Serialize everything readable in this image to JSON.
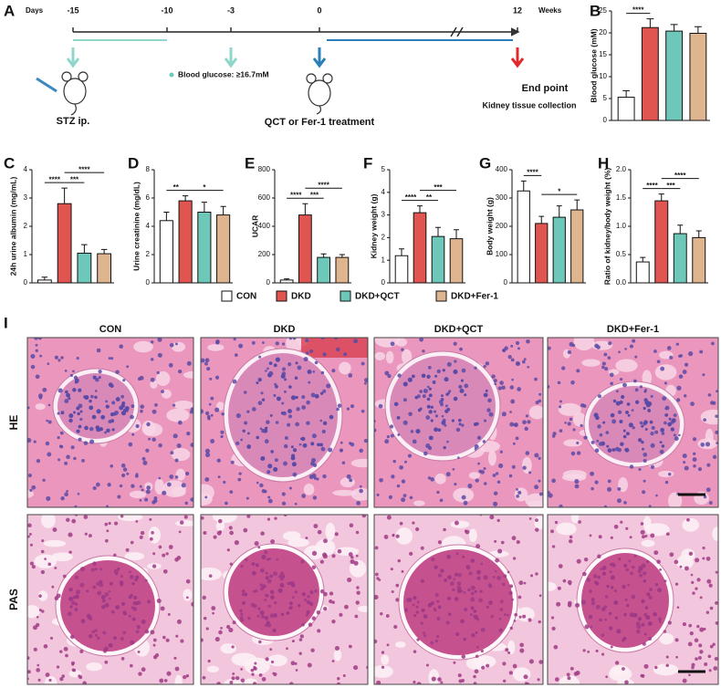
{
  "timeline": {
    "panel": "A",
    "left_unit": "Days",
    "right_unit": "Weeks",
    "ticks": [
      "-15",
      "-10",
      "-3",
      "0",
      "12"
    ],
    "events": {
      "stz": "STZ ip.",
      "glucose": "Blood glucose: ≥16.7mM",
      "treatment": "QCT or Fer-1 treatment",
      "end_point": "End point",
      "collection": "Kidney tissue collection"
    }
  },
  "legend": [
    {
      "name": "CON",
      "color": "#ffffff"
    },
    {
      "name": "DKD",
      "color": "#e0554f"
    },
    {
      "name": "DKD+QCT",
      "color": "#6ec8b9"
    },
    {
      "name": "DKD+Fer-1",
      "color": "#dfb590"
    }
  ],
  "chart_data": [
    {
      "type": "bar",
      "panel": "B",
      "y_label": "Blood glucose (mM)",
      "values": [
        5.3,
        21.2,
        20.4,
        19.9
      ],
      "errors": [
        1.5,
        2.0,
        1.5,
        1.5
      ],
      "ylim": [
        0,
        25
      ],
      "yticks": [
        0,
        5,
        10,
        15,
        20,
        25
      ],
      "significance": [
        {
          "label": "****",
          "from": 0,
          "to": 1
        }
      ]
    },
    {
      "type": "bar",
      "panel": "C",
      "y_label": "24h urine albumin (mg/mL)",
      "values": [
        0.1,
        2.8,
        1.05,
        1.03
      ],
      "errors": [
        0.1,
        0.55,
        0.3,
        0.15
      ],
      "ylim": [
        0,
        4
      ],
      "yticks": [
        0,
        1,
        2,
        3,
        4
      ],
      "significance": [
        {
          "label": "****",
          "from": 0,
          "to": 1
        },
        {
          "label": "***",
          "from": 1,
          "to": 2
        },
        {
          "label": "****",
          "from": 1,
          "to": 3
        }
      ]
    },
    {
      "type": "bar",
      "panel": "D",
      "y_label": "Urine creatinine (mg/dL)",
      "values": [
        4.4,
        5.8,
        5.0,
        4.8
      ],
      "errors": [
        0.6,
        0.35,
        0.7,
        0.6
      ],
      "ylim": [
        0,
        8
      ],
      "yticks": [
        0,
        2,
        4,
        6,
        8
      ],
      "significance": [
        {
          "label": "**",
          "from": 0,
          "to": 1
        },
        {
          "label": "*",
          "from": 1,
          "to": 3
        }
      ]
    },
    {
      "type": "bar",
      "panel": "E",
      "y_label": "UCAR",
      "values": [
        20,
        480,
        180,
        180
      ],
      "errors": [
        8,
        80,
        25,
        20
      ],
      "ylim": [
        0,
        800
      ],
      "yticks": [
        0,
        200,
        400,
        600,
        800
      ],
      "significance": [
        {
          "label": "****",
          "from": 0,
          "to": 1
        },
        {
          "label": "***",
          "from": 1,
          "to": 2
        },
        {
          "label": "****",
          "from": 1,
          "to": 3
        }
      ]
    },
    {
      "type": "bar",
      "panel": "F",
      "y_label": "Kidney weight (g)",
      "values": [
        1.2,
        3.1,
        2.05,
        1.95
      ],
      "errors": [
        0.3,
        0.3,
        0.4,
        0.4
      ],
      "ylim": [
        0,
        5
      ],
      "yticks": [
        0,
        1,
        2,
        3,
        4,
        5
      ],
      "significance": [
        {
          "label": "****",
          "from": 0,
          "to": 1
        },
        {
          "label": "**",
          "from": 1,
          "to": 2
        },
        {
          "label": "***",
          "from": 1,
          "to": 3
        }
      ]
    },
    {
      "type": "bar",
      "panel": "G",
      "y_label": "Body weight (g)",
      "values": [
        325,
        210,
        232,
        258
      ],
      "errors": [
        35,
        25,
        40,
        35
      ],
      "ylim": [
        0,
        400
      ],
      "yticks": [
        0,
        100,
        200,
        300,
        400
      ],
      "significance": [
        {
          "label": "****",
          "from": 0,
          "to": 1
        },
        {
          "label": "*",
          "from": 1,
          "to": 3
        }
      ]
    },
    {
      "type": "bar",
      "panel": "H",
      "y_label": "Ratio of kidney/body weight (%)",
      "values": [
        0.37,
        1.45,
        0.87,
        0.8
      ],
      "errors": [
        0.08,
        0.12,
        0.15,
        0.12
      ],
      "ylim": [
        0,
        2
      ],
      "yticks": [
        {
          "value": 0,
          "label": "0.0"
        },
        0.5,
        {
          "value": 1,
          "label": "1.0"
        },
        1.5,
        {
          "value": 2,
          "label": "2.0"
        }
      ],
      "significance": [
        {
          "label": "****",
          "from": 0,
          "to": 1
        },
        {
          "label": "***",
          "from": 1,
          "to": 2
        },
        {
          "label": "****",
          "from": 1,
          "to": 3
        }
      ]
    }
  ],
  "histology": {
    "panel": "I",
    "columns": [
      "CON",
      "DKD",
      "DKD+QCT",
      "DKD+Fer-1"
    ],
    "rows": [
      "HE",
      "PAS"
    ]
  }
}
